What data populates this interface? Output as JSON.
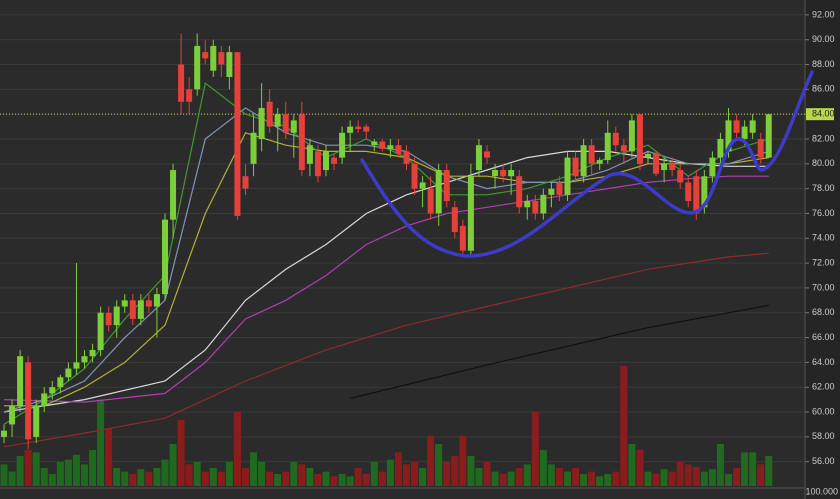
{
  "chart_data": {
    "type": "candlestick",
    "ylim": [
      54,
      93.2
    ],
    "yticks": [
      {
        "value": 56,
        "label": "56.00"
      },
      {
        "value": 58,
        "label": "58.00"
      },
      {
        "value": 60,
        "label": "60.00"
      },
      {
        "value": 62,
        "label": "62.00"
      },
      {
        "value": 64,
        "label": "64.00"
      },
      {
        "value": 66,
        "label": "66.00"
      },
      {
        "value": 68,
        "label": "68.00"
      },
      {
        "value": 70,
        "label": "70.00"
      },
      {
        "value": 72,
        "label": "72.00"
      },
      {
        "value": 74,
        "label": "74.00"
      },
      {
        "value": 76,
        "label": "76.00"
      },
      {
        "value": 78,
        "label": "78.00"
      },
      {
        "value": 80,
        "label": "80.00"
      },
      {
        "value": 82,
        "label": "82.00"
      },
      {
        "value": 84,
        "label": "84.00"
      },
      {
        "value": 86,
        "label": "86.00"
      },
      {
        "value": 88,
        "label": "88.00"
      },
      {
        "value": 90,
        "label": "90.00"
      },
      {
        "value": 92,
        "label": "92.00"
      }
    ],
    "grid": true,
    "up_color": "#7ccf3a",
    "down_color": "#e5413a",
    "up_volume_color": "#1f6a1f",
    "down_volume_color": "#8a1c1c",
    "last_price": {
      "value": 84,
      "label": "84.00",
      "color": "#b8d84a"
    },
    "volume_label": "100.000",
    "volume_lim": [
      0,
      100
    ],
    "candles": [
      [
        58,
        59,
        57.5,
        58.5
      ],
      [
        59,
        61,
        58,
        60.5
      ],
      [
        60.5,
        65,
        60,
        64.5
      ],
      [
        64,
        64.5,
        57,
        57.8
      ],
      [
        58,
        61,
        57.5,
        60.5
      ],
      [
        60.5,
        62,
        60,
        61.5
      ],
      [
        61.5,
        62.5,
        61,
        62
      ],
      [
        62,
        63,
        61.5,
        62.8
      ],
      [
        62.8,
        64,
        62.5,
        63.5
      ],
      [
        63.5,
        72,
        63,
        64
      ],
      [
        64,
        65,
        63.5,
        64.5
      ],
      [
        64.5,
        65.5,
        64,
        65
      ],
      [
        65,
        68.5,
        64.5,
        68
      ],
      [
        68,
        68.5,
        66.5,
        67
      ],
      [
        67,
        69,
        66,
        68.5
      ],
      [
        68.5,
        69.5,
        68,
        69
      ],
      [
        69,
        69.5,
        67,
        67.5
      ],
      [
        67.5,
        69.5,
        67,
        69
      ],
      [
        69,
        69.5,
        68,
        68.5
      ],
      [
        68.5,
        70,
        66,
        69.5
      ],
      [
        69.5,
        76,
        69,
        75.5
      ],
      [
        75.5,
        80,
        74,
        79.5
      ],
      [
        88,
        90.5,
        84,
        85
      ],
      [
        86,
        87,
        84,
        85
      ],
      [
        86,
        90.5,
        85.5,
        89.5
      ],
      [
        89,
        90,
        88,
        88.5
      ],
      [
        87.5,
        90,
        87,
        89.5
      ],
      [
        89,
        89.5,
        87,
        88
      ],
      [
        87,
        89.5,
        86,
        89
      ],
      [
        89,
        89,
        75.5,
        75.8
      ],
      [
        79,
        80,
        77.5,
        78
      ],
      [
        80,
        84,
        79,
        82.5
      ],
      [
        82,
        86.5,
        81,
        84.5
      ],
      [
        85,
        86,
        82.5,
        83
      ],
      [
        83,
        84.5,
        81,
        84
      ],
      [
        84,
        85,
        82,
        82.5
      ],
      [
        82.5,
        84,
        80.5,
        83.5
      ],
      [
        84,
        85,
        79,
        79.5
      ],
      [
        80,
        82,
        79,
        81.5
      ],
      [
        81,
        81.5,
        78.5,
        79
      ],
      [
        79.5,
        81.5,
        79,
        81
      ],
      [
        80.5,
        80.8,
        79.5,
        80
      ],
      [
        80.5,
        83,
        80,
        82.5
      ],
      [
        82.5,
        83.5,
        81,
        83
      ],
      [
        83,
        83.5,
        82.5,
        82.8
      ],
      [
        83,
        83.2,
        82,
        82.6
      ],
      [
        81.5,
        82,
        81,
        81.8
      ],
      [
        81.8,
        82,
        81,
        81.2
      ],
      [
        81.2,
        82,
        80.5,
        81.5
      ],
      [
        81.5,
        82,
        80.5,
        80.8
      ],
      [
        81,
        81.5,
        79.5,
        80
      ],
      [
        80,
        80.5,
        77.5,
        78
      ],
      [
        78,
        79,
        76.5,
        78.5
      ],
      [
        78,
        79,
        75.5,
        76
      ],
      [
        76,
        80,
        75,
        79.5
      ],
      [
        79.5,
        80,
        76.5,
        77
      ],
      [
        76.5,
        77,
        74,
        74.5
      ],
      [
        75,
        75.5,
        72.5,
        73
      ],
      [
        73,
        80,
        72.5,
        79
      ],
      [
        79.5,
        82,
        79,
        81.5
      ],
      [
        81,
        81.5,
        80,
        80.5
      ],
      [
        79,
        80,
        78,
        79.5
      ],
      [
        79.5,
        80,
        78.5,
        79
      ],
      [
        79,
        80,
        77.5,
        79.5
      ],
      [
        79,
        79.5,
        76,
        76.5
      ],
      [
        76.5,
        77.5,
        75.5,
        77
      ],
      [
        77,
        77.5,
        75.5,
        76
      ],
      [
        76,
        78,
        75.5,
        77.5
      ],
      [
        77.5,
        78.5,
        76.5,
        78
      ],
      [
        78.5,
        79,
        77,
        77.5
      ],
      [
        77.5,
        81,
        77,
        80.5
      ],
      [
        80.5,
        81,
        78.5,
        79
      ],
      [
        79,
        82,
        78.5,
        81.5
      ],
      [
        81.5,
        82,
        79,
        80
      ],
      [
        80,
        80.5,
        79.5,
        80.3
      ],
      [
        80.3,
        83.5,
        80,
        82.5
      ],
      [
        82.5,
        83,
        81,
        81.5
      ],
      [
        81.5,
        82,
        80,
        81
      ],
      [
        81,
        84,
        80.5,
        83.5
      ],
      [
        84,
        84,
        79.5,
        80
      ],
      [
        80.5,
        81,
        80,
        80.8
      ],
      [
        80.8,
        81,
        79,
        79.2
      ],
      [
        79.5,
        80.5,
        78.5,
        80
      ],
      [
        80,
        80.5,
        79,
        79.5
      ],
      [
        79.5,
        80,
        78,
        78.5
      ],
      [
        78.5,
        79,
        76.5,
        77
      ],
      [
        79,
        79.5,
        75.5,
        76
      ],
      [
        76.5,
        79.5,
        76,
        79
      ],
      [
        79,
        81,
        78.5,
        80.5
      ],
      [
        80.5,
        82.5,
        80,
        82
      ],
      [
        81,
        84.5,
        80.5,
        83.5
      ],
      [
        83.5,
        84,
        82,
        82.5
      ],
      [
        82,
        83.5,
        81.5,
        83
      ],
      [
        82.5,
        84,
        82,
        83.5
      ],
      [
        82,
        82.5,
        80,
        80.5
      ],
      [
        80.5,
        84,
        80.5,
        84
      ]
    ],
    "volumes": [
      18,
      12,
      25,
      30,
      28,
      15,
      10,
      20,
      22,
      26,
      18,
      30,
      72,
      48,
      15,
      12,
      10,
      14,
      12,
      15,
      22,
      35,
      55,
      18,
      20,
      12,
      15,
      12,
      20,
      62,
      15,
      28,
      20,
      12,
      10,
      12,
      20,
      18,
      15,
      10,
      12,
      8,
      10,
      8,
      15,
      10,
      20,
      12,
      22,
      28,
      18,
      20,
      15,
      42,
      35,
      20,
      25,
      42,
      25,
      15,
      20,
      12,
      10,
      12,
      15,
      18,
      62,
      30,
      18,
      15,
      12,
      15,
      10,
      12,
      8,
      10,
      12,
      100,
      35,
      30,
      12,
      10,
      14,
      12,
      20,
      18,
      16,
      12,
      14,
      35,
      10,
      15,
      28,
      28,
      18,
      25
    ],
    "moving_averages": [
      {
        "color": "#d9d9d9",
        "x": [
          0,
          10,
          20,
          25,
          30,
          35,
          40,
          45,
          50,
          55,
          60,
          65,
          70,
          75,
          80,
          85,
          90,
          95
        ],
        "values": [
          60,
          61,
          62.5,
          65,
          69,
          71.5,
          73.5,
          76,
          77.5,
          78.5,
          79.5,
          80.5,
          81,
          81,
          80.5,
          80,
          79.8,
          79.8
        ]
      },
      {
        "color": "#b03fb0",
        "x": [
          0,
          10,
          20,
          25,
          30,
          35,
          40,
          45,
          50,
          55,
          60,
          65,
          70,
          75,
          80,
          85,
          90,
          95
        ],
        "values": [
          61,
          60.8,
          61.5,
          64,
          67.5,
          69,
          71,
          73.5,
          75,
          76,
          76.5,
          77,
          77.5,
          78,
          78.5,
          78.8,
          79,
          79
        ]
      },
      {
        "color": "#8e2a2a",
        "x": [
          0,
          10,
          20,
          25,
          30,
          40,
          50,
          60,
          70,
          80,
          90,
          95
        ],
        "values": [
          57.2,
          58.3,
          59.5,
          61,
          62.5,
          65,
          67,
          68.5,
          70,
          71.5,
          72.5,
          72.8
        ]
      },
      {
        "color": "#111111",
        "x": [
          43,
          50,
          60,
          70,
          80,
          90,
          95
        ],
        "values": [
          61.1,
          62.2,
          63.8,
          65.3,
          66.8,
          68,
          68.6
        ]
      },
      {
        "color": "#b5b035",
        "x": [
          0,
          5,
          10,
          15,
          20,
          25,
          30,
          35,
          40,
          45,
          50,
          55,
          60,
          65,
          70,
          75,
          80,
          85,
          90,
          95
        ],
        "values": [
          60.5,
          60.5,
          62,
          64,
          67,
          76,
          82.5,
          81.5,
          81,
          81,
          80.5,
          79,
          79,
          78.5,
          78.5,
          79,
          80,
          80,
          80,
          80.5
        ]
      },
      {
        "color": "#7f95b5",
        "x": [
          0,
          5,
          10,
          15,
          20,
          25,
          30,
          35,
          40,
          45,
          50,
          55,
          60,
          65,
          70,
          75,
          80,
          85,
          90,
          95
        ],
        "values": [
          60,
          61,
          62.5,
          66,
          69,
          82,
          84.5,
          82.5,
          81.5,
          81.5,
          81,
          79,
          78,
          78.5,
          78.5,
          79.5,
          81,
          80,
          80,
          81
        ]
      },
      {
        "color": "#3f9a2f",
        "x": [
          0,
          5,
          10,
          15,
          20,
          25,
          30,
          35,
          40,
          45,
          50,
          55,
          60,
          65,
          70,
          75,
          80,
          85,
          90,
          95
        ],
        "values": [
          59,
          61,
          63.5,
          67.5,
          71,
          86.5,
          84,
          83,
          80.5,
          82,
          80.5,
          77.5,
          77.5,
          78,
          79,
          80.5,
          81.5,
          79,
          81,
          82
        ]
      }
    ]
  }
}
